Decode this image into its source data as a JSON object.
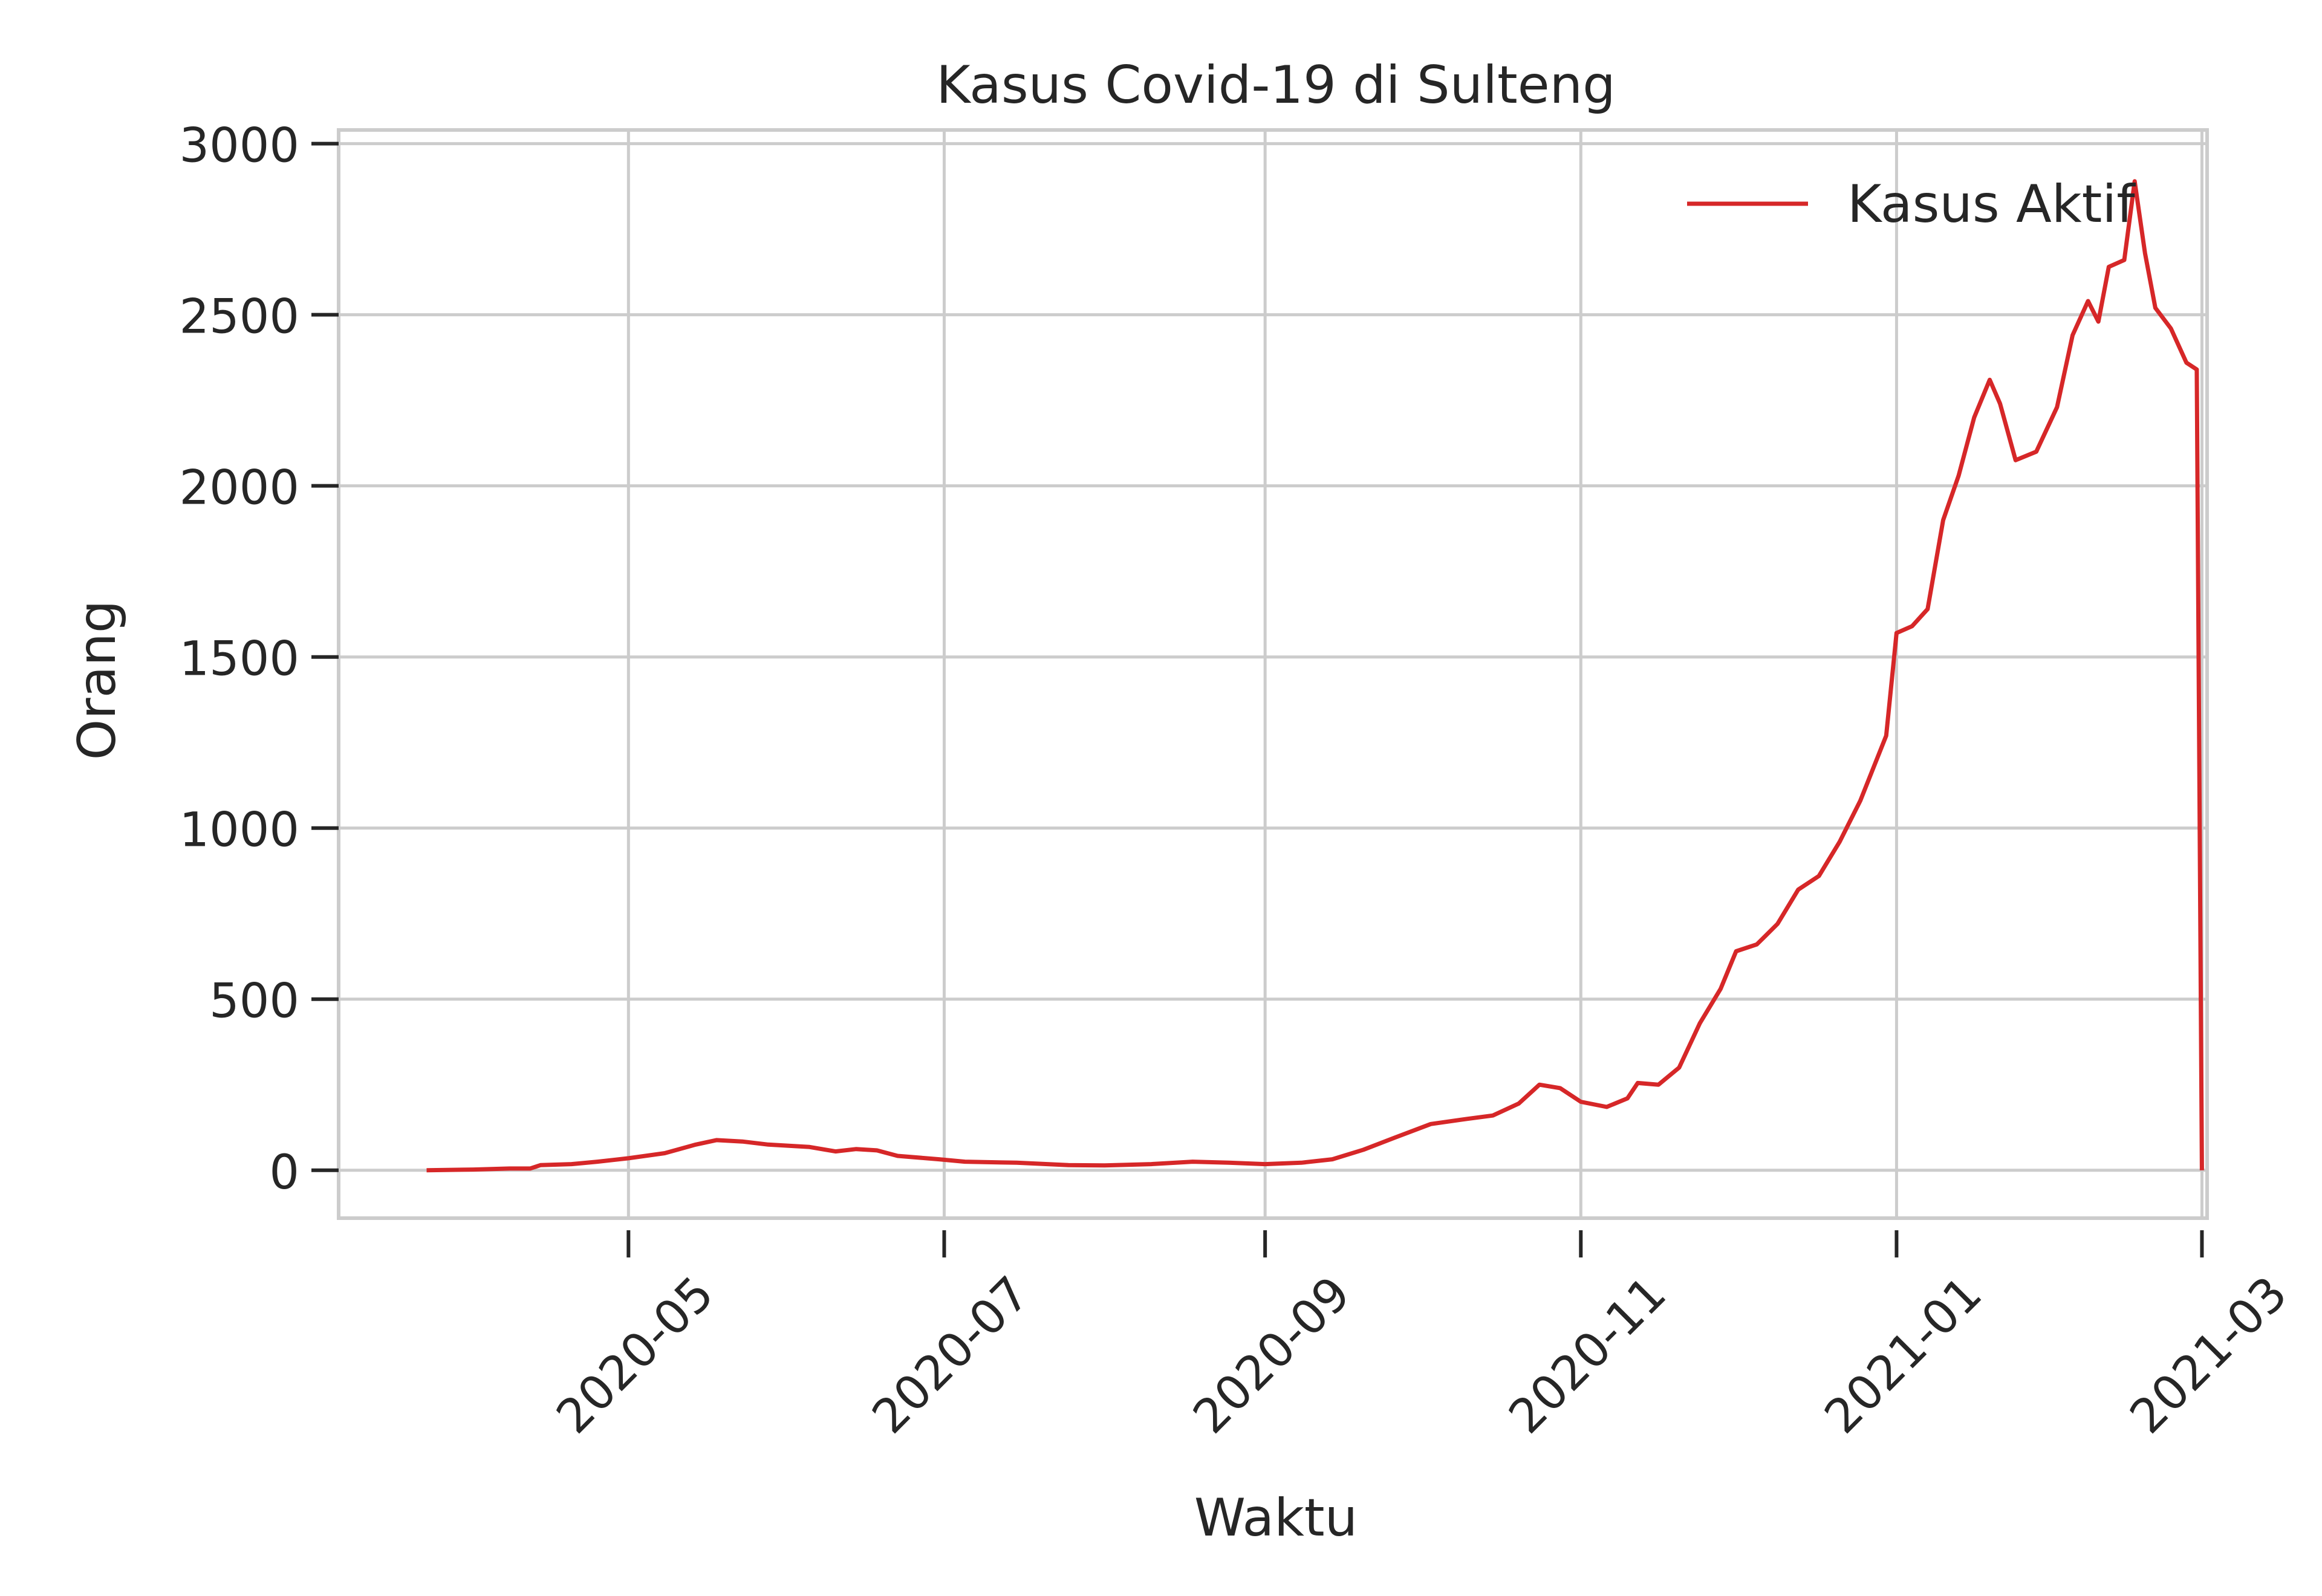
{
  "chart_data": {
    "type": "line",
    "title": "Kasus Covid-19 di Sulteng",
    "xlabel": "Waktu",
    "ylabel": "Orang",
    "x_tick_labels": [
      "2020-05",
      "2020-07",
      "2020-09",
      "2020-11",
      "2021-01",
      "2021-03"
    ],
    "y_tick_labels": [
      "0",
      "500",
      "1000",
      "1500",
      "2000",
      "2500",
      "3000"
    ],
    "y_ticks": [
      0,
      500,
      1000,
      1500,
      2000,
      2500,
      3000
    ],
    "xlim": [
      "2020-03-06",
      "2021-03-02"
    ],
    "ylim": [
      -140,
      3040
    ],
    "grid": true,
    "legend": {
      "position": "top-right",
      "entries": [
        "Kasus Aktif"
      ]
    },
    "series": [
      {
        "name": "Kasus Aktif",
        "color": "#d62728",
        "points": [
          [
            "2020-03-23",
            0
          ],
          [
            "2020-04-01",
            2
          ],
          [
            "2020-04-08",
            5
          ],
          [
            "2020-04-12",
            5
          ],
          [
            "2020-04-14",
            15
          ],
          [
            "2020-04-20",
            18
          ],
          [
            "2020-04-25",
            25
          ],
          [
            "2020-05-01",
            35
          ],
          [
            "2020-05-08",
            50
          ],
          [
            "2020-05-14",
            75
          ],
          [
            "2020-05-18",
            88
          ],
          [
            "2020-05-23",
            84
          ],
          [
            "2020-05-28",
            75
          ],
          [
            "2020-06-05",
            68
          ],
          [
            "2020-06-10",
            55
          ],
          [
            "2020-06-14",
            62
          ],
          [
            "2020-06-18",
            58
          ],
          [
            "2020-06-22",
            42
          ],
          [
            "2020-06-30",
            32
          ],
          [
            "2020-07-05",
            25
          ],
          [
            "2020-07-15",
            22
          ],
          [
            "2020-07-25",
            15
          ],
          [
            "2020-08-01",
            14
          ],
          [
            "2020-08-10",
            18
          ],
          [
            "2020-08-18",
            25
          ],
          [
            "2020-08-25",
            22
          ],
          [
            "2020-09-01",
            18
          ],
          [
            "2020-09-08",
            22
          ],
          [
            "2020-09-14",
            32
          ],
          [
            "2020-09-20",
            60
          ],
          [
            "2020-09-26",
            95
          ],
          [
            "2020-10-03",
            135
          ],
          [
            "2020-10-10",
            150
          ],
          [
            "2020-10-15",
            160
          ],
          [
            "2020-10-20",
            195
          ],
          [
            "2020-10-24",
            250
          ],
          [
            "2020-10-28",
            240
          ],
          [
            "2020-11-01",
            200
          ],
          [
            "2020-11-06",
            185
          ],
          [
            "2020-11-10",
            210
          ],
          [
            "2020-11-12",
            255
          ],
          [
            "2020-11-16",
            250
          ],
          [
            "2020-11-20",
            300
          ],
          [
            "2020-11-24",
            430
          ],
          [
            "2020-11-28",
            530
          ],
          [
            "2020-12-01",
            640
          ],
          [
            "2020-12-05",
            660
          ],
          [
            "2020-12-09",
            720
          ],
          [
            "2020-12-13",
            820
          ],
          [
            "2020-12-17",
            860
          ],
          [
            "2020-12-21",
            960
          ],
          [
            "2020-12-25",
            1080
          ],
          [
            "2020-12-30",
            1270
          ],
          [
            "2021-01-01",
            1570
          ],
          [
            "2021-01-04",
            1590
          ],
          [
            "2021-01-07",
            1640
          ],
          [
            "2021-01-10",
            1900
          ],
          [
            "2021-01-13",
            2030
          ],
          [
            "2021-01-16",
            2200
          ],
          [
            "2021-01-19",
            2310
          ],
          [
            "2021-01-21",
            2240
          ],
          [
            "2021-01-24",
            2075
          ],
          [
            "2021-01-28",
            2100
          ],
          [
            "2021-02-01",
            2230
          ],
          [
            "2021-02-04",
            2440
          ],
          [
            "2021-02-07",
            2540
          ],
          [
            "2021-02-09",
            2480
          ],
          [
            "2021-02-11",
            2640
          ],
          [
            "2021-02-14",
            2660
          ],
          [
            "2021-02-16",
            2890
          ],
          [
            "2021-02-18",
            2680
          ],
          [
            "2021-02-20",
            2520
          ],
          [
            "2021-02-23",
            2460
          ],
          [
            "2021-02-26",
            2360
          ],
          [
            "2021-02-28",
            2340
          ],
          [
            "2021-03-01",
            0
          ]
        ]
      }
    ]
  }
}
